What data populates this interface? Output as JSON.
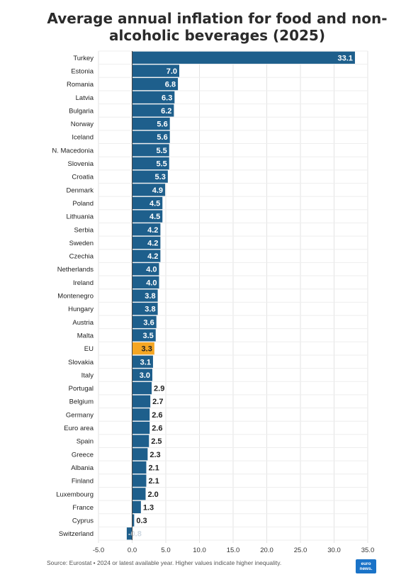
{
  "chart_data": {
    "type": "bar",
    "orientation": "horizontal",
    "title": "Average annual inflation for food and non-alcoholic beverages (2025)",
    "title_lines": [
      "Average annual inflation for food and non-",
      "alcoholic beverages (2025)"
    ],
    "categories": [
      "Turkey",
      "Estonia",
      "Romania",
      "Latvia",
      "Bulgaria",
      "Norway",
      "Iceland",
      "N. Macedonia",
      "Slovenia",
      "Croatia",
      "Denmark",
      "Poland",
      "Lithuania",
      "Serbia",
      "Sweden",
      "Czechia",
      "Netherlands",
      "Ireland",
      "Montenegro",
      "Hungary",
      "Austria",
      "Malta",
      "EU",
      "Slovakia",
      "Italy",
      "Portugal",
      "Belgium",
      "Germany",
      "Euro area",
      "Spain",
      "Greece",
      "Albania",
      "Finland",
      "Luxembourg",
      "France",
      "Cyprus",
      "Switzerland"
    ],
    "values": [
      33.1,
      7.0,
      6.8,
      6.3,
      6.2,
      5.6,
      5.6,
      5.5,
      5.5,
      5.3,
      4.9,
      4.5,
      4.5,
      4.2,
      4.2,
      4.2,
      4.0,
      4.0,
      3.8,
      3.8,
      3.6,
      3.5,
      3.3,
      3.1,
      3.0,
      2.9,
      2.7,
      2.6,
      2.6,
      2.5,
      2.3,
      2.1,
      2.1,
      2.0,
      1.3,
      0.3,
      -0.8
    ],
    "value_labels": [
      "33.1",
      "7.0",
      "6.8",
      "6.3",
      "6.2",
      "5.6",
      "5.6",
      "5.5",
      "5.5",
      "5.3",
      "4.9",
      "4.5",
      "4.5",
      "4.2",
      "4.2",
      "4.2",
      "4.0",
      "4.0",
      "3.8",
      "3.8",
      "3.6",
      "3.5",
      "3.3",
      "3.1",
      "3.0",
      "2.9",
      "2.7",
      "2.6",
      "2.6",
      "2.5",
      "2.3",
      "2.1",
      "2.1",
      "2.0",
      "1.3",
      "0.3",
      "-0.8"
    ],
    "highlight": "EU",
    "xlim": [
      -5,
      35
    ],
    "xticks": [
      "-5.0",
      "0.0",
      "5.0",
      "10.0",
      "15.0",
      "20.0",
      "25.0",
      "30.0",
      "35.0"
    ],
    "grid": true,
    "colors": {
      "bar": "#1e5f8c",
      "highlight": "#f5a623",
      "grid": "#e3e3e3",
      "axis": "#444444"
    }
  },
  "footer": {
    "source": "Source: Eurostat • 2024 or latest available year. Higher values indicate higher inequality."
  },
  "logo": {
    "line1": "euro",
    "line2": "news."
  }
}
